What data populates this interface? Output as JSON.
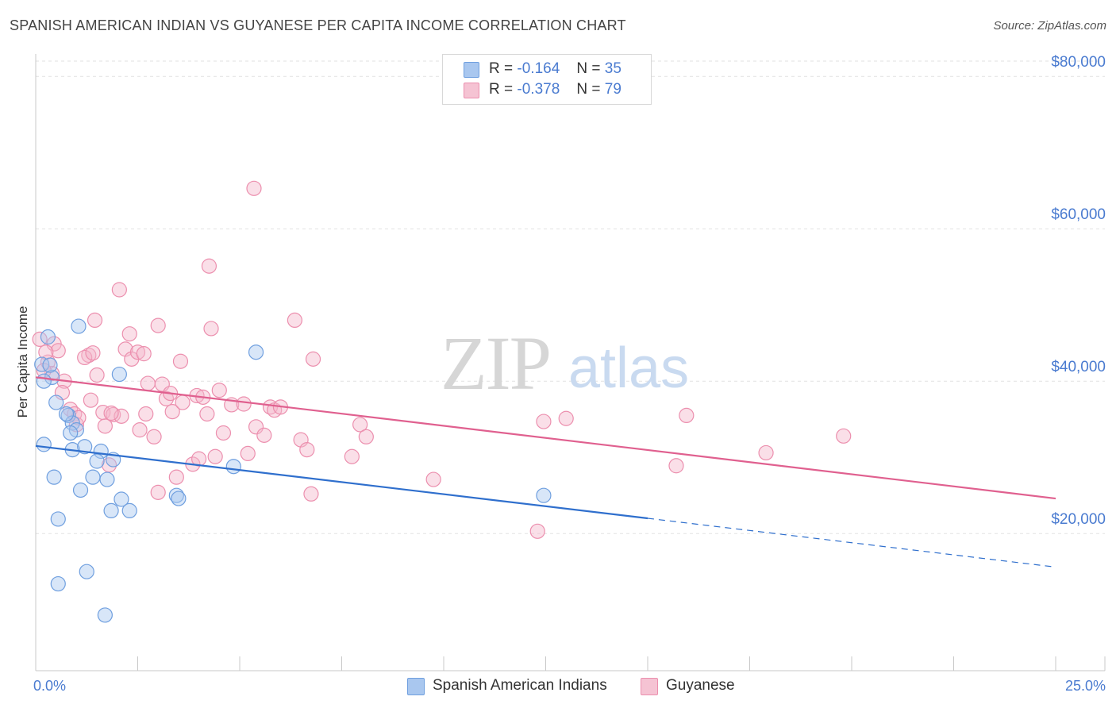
{
  "header": {
    "title": "SPANISH AMERICAN INDIAN VS GUYANESE PER CAPITA INCOME CORRELATION CHART",
    "source": "Source: ZipAtlas.com"
  },
  "legend": {
    "rows": [
      {
        "r_label": "R =",
        "r_value": "-0.164",
        "n_label": "N =",
        "n_value": "35"
      },
      {
        "r_label": "R =",
        "r_value": "-0.378",
        "n_label": "N =",
        "n_value": "79"
      }
    ]
  },
  "watermark": {
    "zip": "ZIP",
    "atlas": "atlas"
  },
  "colors": {
    "blue_fill": "#a9c7ef",
    "blue_stroke": "#6f9fdf",
    "blue_line": "#2f6fcd",
    "pink_fill": "#f5b9cc",
    "pink_stroke": "#ec8fae",
    "pink_line": "#e0608f",
    "tick_text": "#4a7bd0",
    "grid": "#e2e2e2"
  },
  "chart_data": {
    "type": "scatter",
    "title": "SPANISH AMERICAN INDIAN VS GUYANESE PER CAPITA INCOME CORRELATION CHART",
    "xlabel": "",
    "ylabel": "Per Capita Income",
    "xlim": [
      0,
      25
    ],
    "ylim": [
      2000,
      82000
    ],
    "x_tick_labels": [
      {
        "value": 0,
        "label": "0.0%"
      },
      {
        "value": 25,
        "label": "25.0%"
      }
    ],
    "y_ticks": [
      {
        "value": 20000,
        "label": "$20,000"
      },
      {
        "value": 40000,
        "label": "$40,000"
      },
      {
        "value": 60000,
        "label": "$60,000"
      },
      {
        "value": 80000,
        "label": "$80,000"
      }
    ],
    "series": [
      {
        "name": "Spanish American Indians",
        "color": "blue",
        "r": -0.164,
        "n": 35,
        "trend": {
          "x0": 0,
          "y0": 31500,
          "x1": 15,
          "y1": 22000,
          "x_dash_end": 25,
          "y_dash_end": 15600
        },
        "points": [
          [
            0.15,
            42200
          ],
          [
            0.3,
            45800
          ],
          [
            0.4,
            40500
          ],
          [
            0.2,
            40000
          ],
          [
            0.5,
            37200
          ],
          [
            0.8,
            35500
          ],
          [
            0.9,
            34500
          ],
          [
            1.0,
            33600
          ],
          [
            0.85,
            33200
          ],
          [
            0.2,
            31700
          ],
          [
            0.9,
            31000
          ],
          [
            1.2,
            31400
          ],
          [
            1.6,
            30800
          ],
          [
            1.9,
            29700
          ],
          [
            1.5,
            29500
          ],
          [
            0.45,
            27400
          ],
          [
            1.4,
            27400
          ],
          [
            1.75,
            27100
          ],
          [
            1.1,
            25700
          ],
          [
            2.1,
            24500
          ],
          [
            3.45,
            25000
          ],
          [
            3.5,
            24600
          ],
          [
            1.85,
            23000
          ],
          [
            2.3,
            23000
          ],
          [
            0.55,
            21900
          ],
          [
            1.25,
            15000
          ],
          [
            0.55,
            13400
          ],
          [
            1.7,
            9300
          ],
          [
            1.05,
            47200
          ],
          [
            2.05,
            40900
          ],
          [
            5.4,
            43800
          ],
          [
            4.85,
            28800
          ],
          [
            12.45,
            25000
          ],
          [
            0.75,
            35700
          ],
          [
            0.35,
            42100
          ]
        ]
      },
      {
        "name": "Guyanese",
        "color": "pink",
        "r": -0.378,
        "n": 79,
        "trend": {
          "x0": 0,
          "y0": 40500,
          "x1": 25,
          "y1": 24600
        },
        "points": [
          [
            0.1,
            45500
          ],
          [
            0.3,
            42500
          ],
          [
            0.45,
            44900
          ],
          [
            0.55,
            44000
          ],
          [
            0.4,
            41000
          ],
          [
            0.7,
            40000
          ],
          [
            0.65,
            38500
          ],
          [
            0.85,
            36300
          ],
          [
            0.95,
            35700
          ],
          [
            1.0,
            34300
          ],
          [
            1.3,
            43400
          ],
          [
            1.2,
            43100
          ],
          [
            1.4,
            43700
          ],
          [
            1.5,
            40800
          ],
          [
            1.35,
            37500
          ],
          [
            1.65,
            35900
          ],
          [
            1.9,
            35600
          ],
          [
            2.1,
            35400
          ],
          [
            1.7,
            34100
          ],
          [
            1.8,
            29000
          ],
          [
            1.45,
            48000
          ],
          [
            2.05,
            52000
          ],
          [
            2.2,
            44200
          ],
          [
            2.3,
            46200
          ],
          [
            2.35,
            42900
          ],
          [
            2.5,
            43800
          ],
          [
            2.75,
            39700
          ],
          [
            2.7,
            35700
          ],
          [
            2.55,
            33600
          ],
          [
            2.9,
            32700
          ],
          [
            3.0,
            47300
          ],
          [
            3.1,
            39600
          ],
          [
            3.2,
            37700
          ],
          [
            3.3,
            38400
          ],
          [
            3.35,
            36000
          ],
          [
            3.45,
            27400
          ],
          [
            3.55,
            42600
          ],
          [
            3.6,
            37200
          ],
          [
            3.0,
            25400
          ],
          [
            3.85,
            29100
          ],
          [
            3.95,
            38100
          ],
          [
            4.1,
            37900
          ],
          [
            4.0,
            29800
          ],
          [
            4.2,
            35700
          ],
          [
            4.4,
            30100
          ],
          [
            4.25,
            55100
          ],
          [
            4.3,
            46900
          ],
          [
            4.5,
            38800
          ],
          [
            4.6,
            33200
          ],
          [
            4.8,
            36900
          ],
          [
            5.1,
            37000
          ],
          [
            5.2,
            30500
          ],
          [
            5.4,
            34000
          ],
          [
            5.6,
            32900
          ],
          [
            5.75,
            36600
          ],
          [
            5.85,
            36200
          ],
          [
            6.0,
            36600
          ],
          [
            5.35,
            65300
          ],
          [
            6.35,
            48000
          ],
          [
            6.5,
            32300
          ],
          [
            6.65,
            31000
          ],
          [
            6.75,
            25200
          ],
          [
            6.8,
            42900
          ],
          [
            7.75,
            30100
          ],
          [
            7.95,
            34300
          ],
          [
            8.1,
            32700
          ],
          [
            9.75,
            27100
          ],
          [
            12.45,
            34700
          ],
          [
            13.0,
            35100
          ],
          [
            15.7,
            28900
          ],
          [
            17.9,
            30600
          ],
          [
            19.8,
            32800
          ],
          [
            15.95,
            35500
          ],
          [
            12.3,
            20300
          ],
          [
            0.2,
            41400
          ],
          [
            1.05,
            35200
          ],
          [
            2.65,
            43600
          ],
          [
            0.25,
            43800
          ],
          [
            1.85,
            35800
          ]
        ]
      }
    ]
  }
}
